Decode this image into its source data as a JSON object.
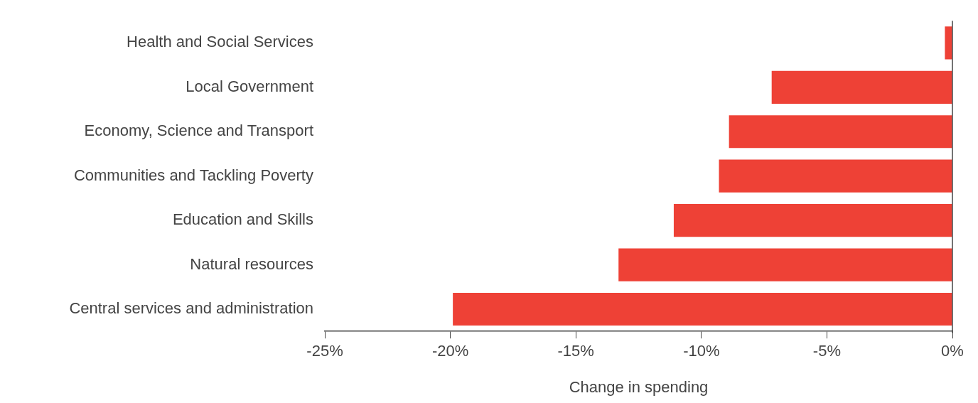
{
  "chart_data": {
    "type": "bar",
    "orientation": "horizontal",
    "xlabel": "Change in spending",
    "categories": [
      "Health and Social Services",
      "Local Government",
      "Economy, Science and Transport",
      "Communities and Tackling Poverty",
      "Education and Skills",
      "Natural resources",
      "Central services and administration"
    ],
    "values": [
      -0.3,
      -7.2,
      -8.9,
      -9.3,
      -11.1,
      -13.3,
      -19.9
    ],
    "color": "#ee4136",
    "xlim": [
      -25,
      0
    ],
    "xticks": [
      {
        "value": -25,
        "label": "-25%"
      },
      {
        "value": -20,
        "label": "-20%"
      },
      {
        "value": -15,
        "label": "-15%"
      },
      {
        "value": -10,
        "label": "-10%"
      },
      {
        "value": -5,
        "label": "-5%"
      },
      {
        "value": 0,
        "label": "0%"
      }
    ],
    "grid": false,
    "legend": false
  }
}
